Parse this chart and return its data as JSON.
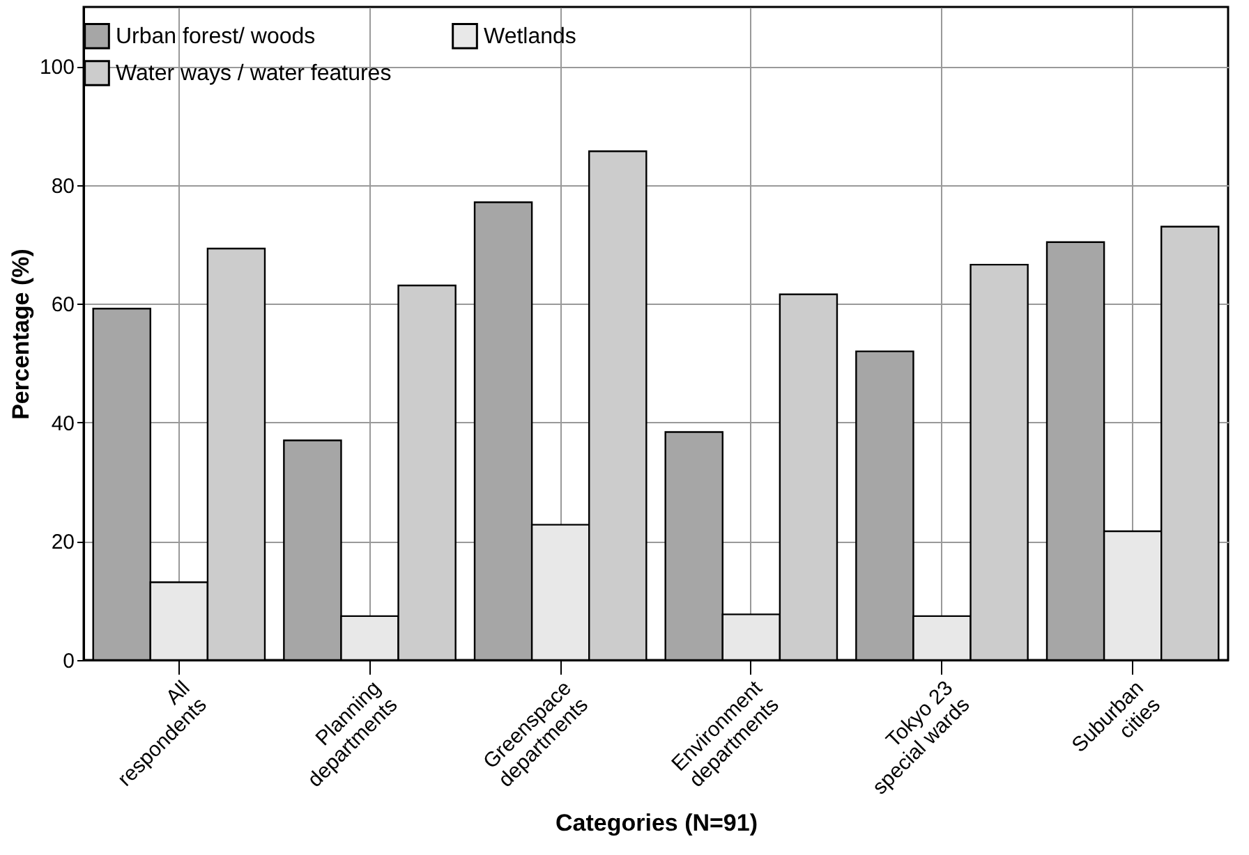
{
  "chart_data": {
    "type": "bar",
    "xlabel": "Categories (N=91)",
    "ylabel": "Percentage (%)",
    "categories": [
      "All\nrespondents",
      "Planning\ndepartments",
      "Greenspace\ndepartments",
      "Environment\ndepartments",
      "Tokyo 23\nspecial wards",
      "Suburban\ncities"
    ],
    "series": [
      {
        "name": "Urban forest/ woods",
        "color": "#a6a6a6",
        "values": [
          59.2,
          37.0,
          77.1,
          38.4,
          52.0,
          70.4
        ]
      },
      {
        "name": "Wetlands",
        "color": "#e8e8e8",
        "values": [
          13.1,
          7.4,
          22.8,
          7.7,
          7.4,
          21.7
        ]
      },
      {
        "name": "Water ways / water features",
        "color": "#cccccc",
        "values": [
          69.3,
          63.1,
          85.7,
          61.6,
          66.6,
          73.0
        ]
      }
    ],
    "ylim": [
      0,
      110
    ],
    "yticks": [
      0,
      20,
      40,
      60,
      80,
      100
    ],
    "grid": true,
    "legend": "top"
  }
}
